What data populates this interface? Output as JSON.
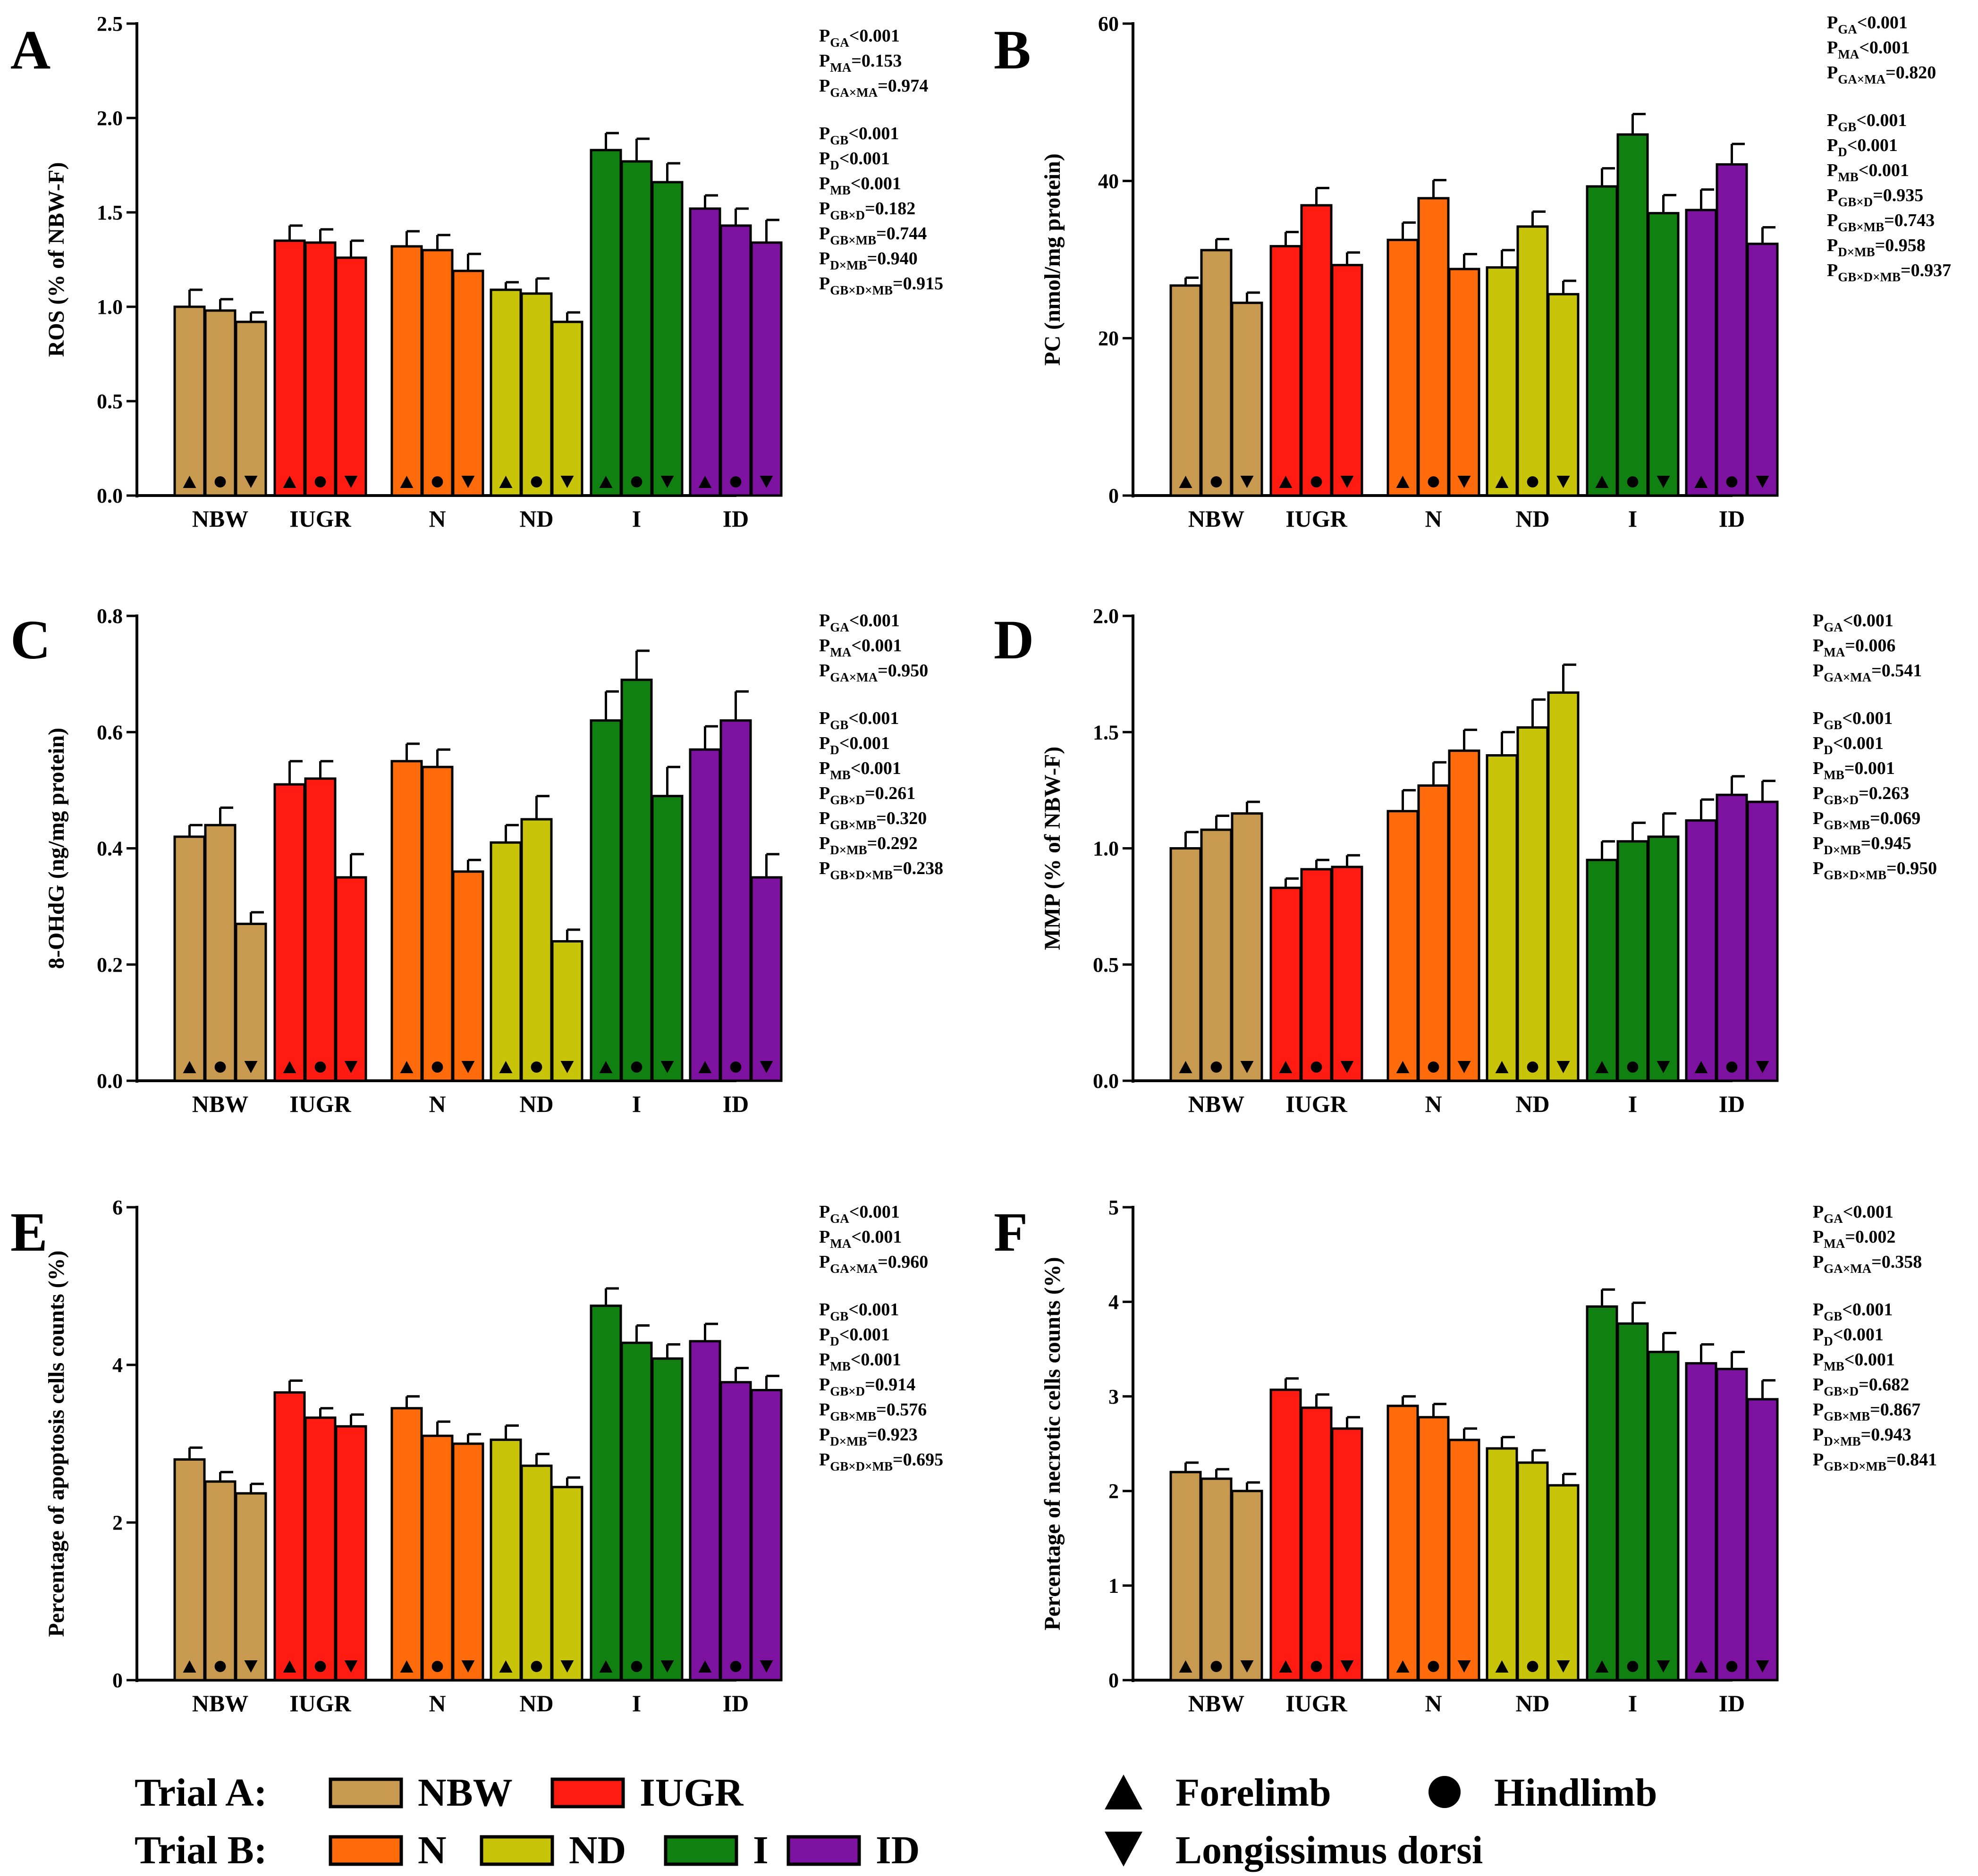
{
  "groups": {
    "NBW": {
      "color": "#C89A4F"
    },
    "IUGR": {
      "color": "#FF1A12"
    },
    "N": {
      "color": "#FF6B0A"
    },
    "ND": {
      "color": "#C7C40A"
    },
    "I": {
      "color": "#108010"
    },
    "ID": {
      "color": "#7E12A0"
    }
  },
  "chart_data": [
    {
      "type": "bar",
      "panel": "A",
      "letter": "A",
      "ylabel": "ROS (% of NBW-F)",
      "ylim": [
        0,
        2.5
      ],
      "ticks": [
        "0.0",
        "0.5",
        "1.0",
        "1.5",
        "2.0",
        "2.5"
      ],
      "categories": [
        "NBW",
        "IUGR",
        "N",
        "ND",
        "I",
        "ID"
      ],
      "series": [
        {
          "name": "Forelimb",
          "values": [
            1.0,
            1.35,
            1.32,
            1.09,
            1.83,
            1.52
          ],
          "errors": [
            0.09,
            0.08,
            0.08,
            0.04,
            0.09,
            0.07
          ]
        },
        {
          "name": "Hindlimb",
          "values": [
            0.98,
            1.34,
            1.3,
            1.07,
            1.77,
            1.43
          ],
          "errors": [
            0.06,
            0.07,
            0.08,
            0.08,
            0.12,
            0.09
          ]
        },
        {
          "name": "Longissimus dorsi",
          "values": [
            0.92,
            1.26,
            1.19,
            0.92,
            1.66,
            1.34
          ],
          "errors": [
            0.05,
            0.09,
            0.09,
            0.05,
            0.1,
            0.12
          ]
        }
      ],
      "stats_a": [
        {
          "sub": "GA",
          "val": "<0.001"
        },
        {
          "sub": "MA",
          "val": "=0.153"
        },
        {
          "sub": "GA×MA",
          "val": "=0.974"
        }
      ],
      "stats_b": [
        {
          "sub": "GB",
          "val": "<0.001"
        },
        {
          "sub": "D",
          "val": "<0.001"
        },
        {
          "sub": "MB",
          "val": "<0.001"
        },
        {
          "sub": "GB×D",
          "val": "=0.182"
        },
        {
          "sub": "GB×MB",
          "val": "=0.744"
        },
        {
          "sub": "D×MB",
          "val": "=0.940"
        },
        {
          "sub": "GB×D×MB",
          "val": "=0.915"
        }
      ]
    },
    {
      "type": "bar",
      "panel": "B",
      "letter": "B",
      "ylabel": "PC (nmol/mg protein)",
      "ylim": [
        0,
        60
      ],
      "ticks": [
        "0",
        "20",
        "40",
        "60"
      ],
      "categories": [
        "NBW",
        "IUGR",
        "N",
        "ND",
        "I",
        "ID"
      ],
      "series": [
        {
          "name": "Forelimb",
          "values": [
            26.7,
            31.7,
            32.5,
            29.0,
            39.3,
            36.3
          ],
          "errors": [
            1.0,
            1.8,
            2.2,
            2.2,
            2.3,
            2.6
          ]
        },
        {
          "name": "Hindlimb",
          "values": [
            31.2,
            36.9,
            37.8,
            34.2,
            45.9,
            42.1
          ],
          "errors": [
            1.4,
            2.2,
            2.3,
            1.9,
            2.6,
            2.6
          ]
        },
        {
          "name": "Longissimus dorsi",
          "values": [
            24.5,
            29.3,
            28.8,
            25.6,
            35.9,
            32.0
          ],
          "errors": [
            1.3,
            1.6,
            1.9,
            1.7,
            2.3,
            2.1
          ]
        }
      ],
      "stats_a": [
        {
          "sub": "GA",
          "val": "<0.001"
        },
        {
          "sub": "MA",
          "val": "<0.001"
        },
        {
          "sub": "GA×MA",
          "val": "=0.820"
        }
      ],
      "stats_b": [
        {
          "sub": "GB",
          "val": "<0.001"
        },
        {
          "sub": "D",
          "val": "<0.001"
        },
        {
          "sub": "MB",
          "val": "<0.001"
        },
        {
          "sub": "GB×D",
          "val": "=0.935"
        },
        {
          "sub": "GB×MB",
          "val": "=0.743"
        },
        {
          "sub": "D×MB",
          "val": "=0.958"
        },
        {
          "sub": "GB×D×MB",
          "val": "=0.937"
        }
      ]
    },
    {
      "type": "bar",
      "panel": "C",
      "letter": "C",
      "ylabel": "8-OHdG (ng/mg protein)",
      "ylim": [
        0,
        0.8
      ],
      "ticks": [
        "0.0",
        "0.2",
        "0.4",
        "0.6",
        "0.8"
      ],
      "categories": [
        "NBW",
        "IUGR",
        "N",
        "ND",
        "I",
        "ID"
      ],
      "series": [
        {
          "name": "Forelimb",
          "values": [
            0.42,
            0.51,
            0.55,
            0.41,
            0.62,
            0.57
          ],
          "errors": [
            0.02,
            0.04,
            0.03,
            0.03,
            0.05,
            0.04
          ]
        },
        {
          "name": "Hindlimb",
          "values": [
            0.44,
            0.52,
            0.54,
            0.45,
            0.69,
            0.62
          ],
          "errors": [
            0.03,
            0.03,
            0.03,
            0.04,
            0.05,
            0.05
          ]
        },
        {
          "name": "Longissimus dorsi",
          "values": [
            0.27,
            0.35,
            0.36,
            0.24,
            0.49,
            0.35
          ],
          "errors": [
            0.02,
            0.04,
            0.02,
            0.02,
            0.05,
            0.04
          ]
        }
      ],
      "stats_a": [
        {
          "sub": "GA",
          "val": "<0.001"
        },
        {
          "sub": "MA",
          "val": "<0.001"
        },
        {
          "sub": "GA×MA",
          "val": "=0.950"
        }
      ],
      "stats_b": [
        {
          "sub": "GB",
          "val": "<0.001"
        },
        {
          "sub": "D",
          "val": "<0.001"
        },
        {
          "sub": "MB",
          "val": "<0.001"
        },
        {
          "sub": "GB×D",
          "val": "=0.261"
        },
        {
          "sub": "GB×MB",
          "val": "=0.320"
        },
        {
          "sub": "D×MB",
          "val": "=0.292"
        },
        {
          "sub": "GB×D×MB",
          "val": "=0.238"
        }
      ]
    },
    {
      "type": "bar",
      "panel": "D",
      "letter": "D",
      "ylabel": "MMP (% of NBW-F)",
      "ylim": [
        0,
        2.0
      ],
      "ticks": [
        "0.0",
        "0.5",
        "1.0",
        "1.5",
        "2.0"
      ],
      "categories": [
        "NBW",
        "IUGR",
        "N",
        "ND",
        "I",
        "ID"
      ],
      "series": [
        {
          "name": "Forelimb",
          "values": [
            1.0,
            0.83,
            1.16,
            1.4,
            0.95,
            1.12
          ],
          "errors": [
            0.07,
            0.04,
            0.09,
            0.1,
            0.08,
            0.09
          ]
        },
        {
          "name": "Hindlimb",
          "values": [
            1.08,
            0.91,
            1.27,
            1.52,
            1.03,
            1.23
          ],
          "errors": [
            0.06,
            0.04,
            0.1,
            0.12,
            0.08,
            0.08
          ]
        },
        {
          "name": "Longissimus dorsi",
          "values": [
            1.15,
            0.92,
            1.42,
            1.67,
            1.05,
            1.2
          ],
          "errors": [
            0.05,
            0.05,
            0.09,
            0.12,
            0.1,
            0.09
          ]
        }
      ],
      "stats_a": [
        {
          "sub": "GA",
          "val": "<0.001"
        },
        {
          "sub": "MA",
          "val": "=0.006"
        },
        {
          "sub": "GA×MA",
          "val": "=0.541"
        }
      ],
      "stats_b": [
        {
          "sub": "GB",
          "val": "<0.001"
        },
        {
          "sub": "D",
          "val": "<0.001"
        },
        {
          "sub": "MB",
          "val": "=0.001"
        },
        {
          "sub": "GB×D",
          "val": "=0.263"
        },
        {
          "sub": "GB×MB",
          "val": "=0.069"
        },
        {
          "sub": "D×MB",
          "val": "=0.945"
        },
        {
          "sub": "GB×D×MB",
          "val": "=0.950"
        }
      ]
    },
    {
      "type": "bar",
      "panel": "E",
      "letter": "E",
      "ylabel": "Percentage of apoptosis cells counts (%)",
      "ylim": [
        0,
        6
      ],
      "ticks": [
        "0",
        "2",
        "4",
        "6"
      ],
      "categories": [
        "NBW",
        "IUGR",
        "N",
        "ND",
        "I",
        "ID"
      ],
      "series": [
        {
          "name": "Forelimb",
          "values": [
            2.8,
            3.65,
            3.45,
            3.05,
            4.75,
            4.3
          ],
          "errors": [
            0.15,
            0.15,
            0.15,
            0.18,
            0.22,
            0.22
          ]
        },
        {
          "name": "Hindlimb",
          "values": [
            2.52,
            3.33,
            3.1,
            2.72,
            4.28,
            3.78
          ],
          "errors": [
            0.12,
            0.12,
            0.18,
            0.15,
            0.22,
            0.18
          ]
        },
        {
          "name": "Longissimus dorsi",
          "values": [
            2.37,
            3.22,
            3.0,
            2.45,
            4.08,
            3.68
          ],
          "errors": [
            0.12,
            0.15,
            0.12,
            0.12,
            0.18,
            0.18
          ]
        }
      ],
      "stats_a": [
        {
          "sub": "GA",
          "val": "<0.001"
        },
        {
          "sub": "MA",
          "val": "<0.001"
        },
        {
          "sub": "GA×MA",
          "val": "=0.960"
        }
      ],
      "stats_b": [
        {
          "sub": "GB",
          "val": "<0.001"
        },
        {
          "sub": "D",
          "val": "<0.001"
        },
        {
          "sub": "MB",
          "val": "<0.001"
        },
        {
          "sub": "GB×D",
          "val": "=0.914"
        },
        {
          "sub": "GB×MB",
          "val": "=0.576"
        },
        {
          "sub": "D×MB",
          "val": "=0.923"
        },
        {
          "sub": "GB×D×MB",
          "val": "=0.695"
        }
      ]
    },
    {
      "type": "bar",
      "panel": "F",
      "letter": "F",
      "ylabel": "Percentage of  necrotic cells counts (%)",
      "ylim": [
        0,
        5
      ],
      "ticks": [
        "0",
        "1",
        "2",
        "3",
        "4",
        "5"
      ],
      "categories": [
        "NBW",
        "IUGR",
        "N",
        "ND",
        "I",
        "ID"
      ],
      "series": [
        {
          "name": "Forelimb",
          "values": [
            2.2,
            3.07,
            2.9,
            2.45,
            3.95,
            3.35
          ],
          "errors": [
            0.1,
            0.12,
            0.1,
            0.12,
            0.18,
            0.2
          ]
        },
        {
          "name": "Hindlimb",
          "values": [
            2.13,
            2.88,
            2.78,
            2.3,
            3.77,
            3.29
          ],
          "errors": [
            0.1,
            0.14,
            0.14,
            0.13,
            0.22,
            0.18
          ]
        },
        {
          "name": "Longissimus dorsi",
          "values": [
            2.0,
            2.66,
            2.54,
            2.06,
            3.47,
            2.97
          ],
          "errors": [
            0.09,
            0.12,
            0.12,
            0.12,
            0.2,
            0.2
          ]
        }
      ],
      "stats_a": [
        {
          "sub": "GA",
          "val": "<0.001"
        },
        {
          "sub": "MA",
          "val": "=0.002"
        },
        {
          "sub": "GA×MA",
          "val": "=0.358"
        }
      ],
      "stats_b": [
        {
          "sub": "GB",
          "val": "<0.001"
        },
        {
          "sub": "D",
          "val": "<0.001"
        },
        {
          "sub": "MB",
          "val": "<0.001"
        },
        {
          "sub": "GB×D",
          "val": "=0.682"
        },
        {
          "sub": "GB×MB",
          "val": "=0.867"
        },
        {
          "sub": "D×MB",
          "val": "=0.943"
        },
        {
          "sub": "GB×D×MB",
          "val": "=0.841"
        }
      ]
    }
  ],
  "legend": {
    "trial_a_label": "Trial A:",
    "trial_a_items": [
      "NBW",
      "IUGR"
    ],
    "trial_b_label": "Trial B:",
    "trial_b_items": [
      "N",
      "ND",
      "I",
      "ID"
    ],
    "markers": [
      {
        "shape": "up",
        "label": "Forelimb"
      },
      {
        "shape": "circle",
        "label": "Hindlimb"
      },
      {
        "shape": "down",
        "label": "Longissimus dorsi"
      }
    ]
  }
}
